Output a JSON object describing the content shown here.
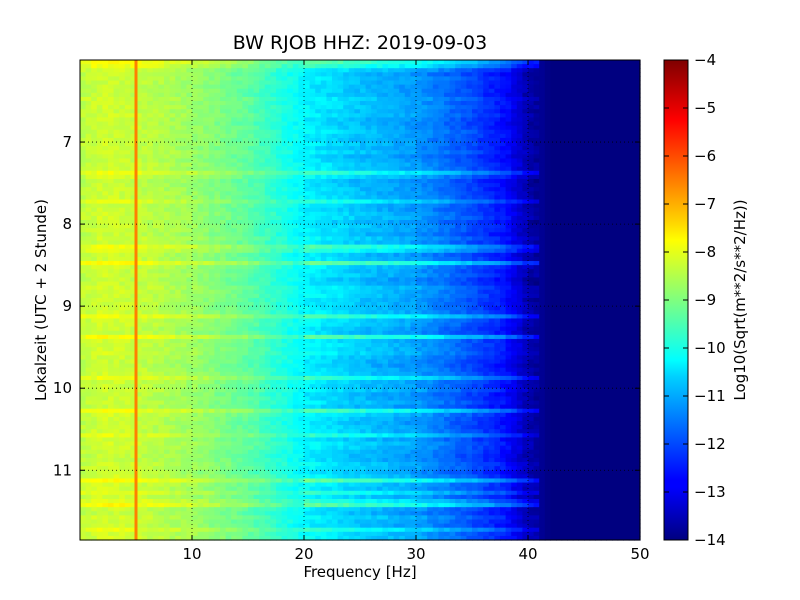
{
  "chart_data": {
    "type": "heatmap",
    "title": "BW RJOB HHZ: 2019-09-03",
    "xlabel": "Frequency [Hz]",
    "ylabel": "Lokalzeit (UTC + 2 Stunde)",
    "xlim": [
      0,
      50
    ],
    "ylim": [
      11.85,
      6.0
    ],
    "xticks": [
      10,
      20,
      30,
      40,
      50
    ],
    "yticks": [
      7,
      8,
      9,
      10,
      11
    ],
    "grid": true,
    "colormap": "jet",
    "colorbar": {
      "label": "Log10(Sqrt(m**2/s**2/Hz))",
      "range": [
        -14,
        -4
      ],
      "ticks": [
        -4,
        -5,
        -6,
        -7,
        -8,
        -9,
        -10,
        -11,
        -12,
        -13,
        -14
      ]
    },
    "spectrum_profile": {
      "frequency_hz": [
        0,
        2,
        5,
        10,
        15,
        20,
        25,
        30,
        35,
        38,
        40,
        42,
        50
      ],
      "log10_amplitude": [
        -8.4,
        -8.2,
        -8.3,
        -8.7,
        -9.3,
        -10.3,
        -10.8,
        -11.2,
        -12.0,
        -12.6,
        -13.5,
        -14.0,
        -14.0
      ]
    },
    "narrowband_lines": [
      {
        "frequency_hz": 5.0,
        "log10_amplitude": -6.5
      }
    ]
  }
}
